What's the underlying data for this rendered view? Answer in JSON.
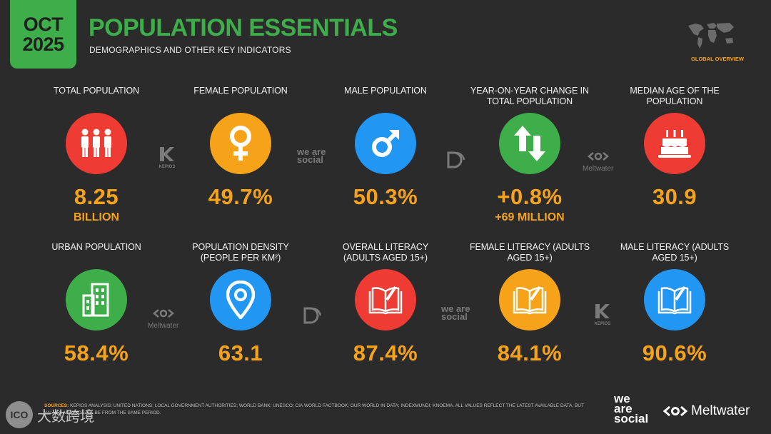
{
  "badge": {
    "month": "OCT",
    "year": "2025"
  },
  "header": {
    "title": "POPULATION ESSENTIALS",
    "subtitle": "DEMOGRAPHICS AND OTHER KEY INDICATORS",
    "section_label": "GLOBAL OVERVIEW"
  },
  "stats": [
    {
      "label": "TOTAL POPULATION",
      "value": "8.25",
      "sub": "BILLION",
      "icon": "people-icon",
      "color": "#ee3b33"
    },
    {
      "label": "FEMALE POPULATION",
      "value": "49.7%",
      "sub": "",
      "icon": "female-symbol-icon",
      "color": "#f7a319"
    },
    {
      "label": "MALE POPULATION",
      "value": "50.3%",
      "sub": "",
      "icon": "male-symbol-icon",
      "color": "#2196f3"
    },
    {
      "label": "YEAR-ON-YEAR CHANGE IN TOTAL POPULATION",
      "value": "+0.8%",
      "sub": "+69 MILLION",
      "icon": "up-down-arrows-icon",
      "color": "#3dae49"
    },
    {
      "label": "MEDIAN AGE OF THE POPULATION",
      "value": "30.9",
      "sub": "",
      "icon": "birthday-cake-icon",
      "color": "#ee3b33"
    },
    {
      "label": "URBAN POPULATION",
      "value": "58.4%",
      "sub": "",
      "icon": "buildings-icon",
      "color": "#3dae49"
    },
    {
      "label": "POPULATION DENSITY (PEOPLE PER KM²)",
      "value": "63.1",
      "sub": "",
      "icon": "map-pin-icon",
      "color": "#2196f3"
    },
    {
      "label": "OVERALL LITERACY (ADULTS AGED 15+)",
      "value": "87.4%",
      "sub": "",
      "icon": "open-book-icon",
      "color": "#ee3b33"
    },
    {
      "label": "FEMALE LITERACY (ADULTS AGED 15+)",
      "value": "84.1%",
      "sub": "",
      "icon": "open-book-icon",
      "color": "#f7a319"
    },
    {
      "label": "MALE LITERACY (ADULTS AGED 15+)",
      "value": "90.6%",
      "sub": "",
      "icon": "open-book-icon",
      "color": "#2196f3"
    }
  ],
  "partner_logos": {
    "kepios": "KEPIOS",
    "we_are_social": "we are social",
    "meltwater": "Meltwater"
  },
  "sources": {
    "label": "SOURCES:",
    "text": "KEPIOS ANALYSIS; UNITED NATIONS; LOCAL GOVERNMENT AUTHORITIES; WORLD BANK; UNESCO; CIA WORLD FACTBOOK; OUR WORLD IN DATA; INDEXMUNDI; KNOEMA. ALL VALUES REFLECT THE LATEST AVAILABLE DATA, BUT VALUES MAY NOT ALL BE FROM THE SAME PERIOD."
  },
  "footer": {
    "we": "we",
    "are": "are",
    "social": "social",
    "meltwater": "Meltwater"
  },
  "watermark": {
    "logo": "ICO",
    "text": "大数跨境"
  }
}
